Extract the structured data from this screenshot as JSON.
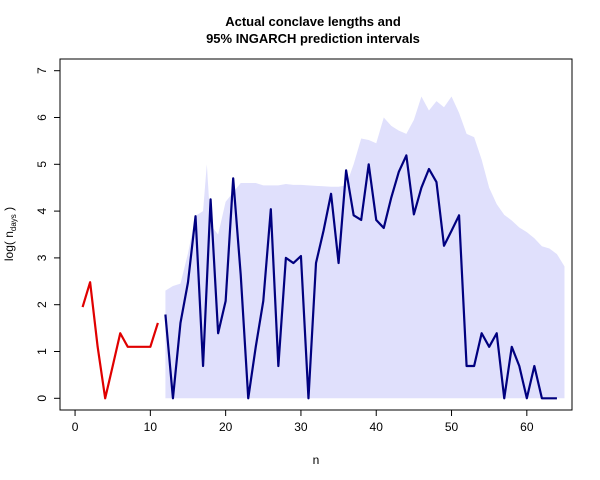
{
  "chart_data": {
    "type": "line",
    "title_line1": "Actual conclave lengths and",
    "title_line2": "95% INGARCH prediction intervals",
    "xlabel": "n",
    "ylabel_main": "log( n",
    "ylabel_sub": "days",
    "ylabel_close": " )",
    "xlim": [
      -2,
      66
    ],
    "ylim": [
      -0.25,
      7.25
    ],
    "x_ticks": [
      0,
      10,
      20,
      30,
      40,
      50,
      60
    ],
    "y_ticks": [
      0,
      1,
      2,
      3,
      4,
      5,
      6,
      7
    ],
    "colors": {
      "observed": "#e00000",
      "actual": "#00007f",
      "interval": "#e0e0fc"
    },
    "observed": {
      "x": [
        1,
        2,
        3,
        4,
        5,
        6,
        7,
        8,
        9,
        10,
        11
      ],
      "y": [
        1.95,
        2.48,
        1.1,
        0.0,
        0.69,
        1.39,
        1.1,
        1.1,
        1.1,
        1.1,
        1.61
      ]
    },
    "actual": {
      "x": [
        12,
        13,
        14,
        15,
        16,
        17,
        18,
        19,
        20,
        21,
        22,
        23,
        24,
        25,
        26,
        27,
        28,
        29,
        30,
        31,
        32,
        33,
        34,
        35,
        36,
        37,
        38,
        39,
        40,
        41,
        42,
        43,
        44,
        45,
        46,
        47,
        48,
        49,
        50,
        51,
        52,
        53,
        54,
        55,
        56,
        57,
        58,
        59,
        60,
        61,
        62,
        63,
        64
      ],
      "y": [
        1.79,
        0.0,
        1.61,
        2.48,
        3.89,
        0.69,
        4.25,
        1.39,
        2.08,
        4.7,
        2.64,
        0.0,
        1.1,
        2.08,
        4.04,
        0.69,
        3.0,
        2.89,
        3.04,
        0.0,
        2.89,
        3.58,
        4.37,
        2.89,
        4.87,
        3.91,
        3.81,
        5.0,
        3.81,
        3.64,
        4.29,
        4.84,
        5.19,
        3.93,
        4.5,
        4.9,
        4.62,
        3.26,
        3.58,
        3.91,
        0.69,
        0.69,
        1.39,
        1.1,
        1.39,
        0.0,
        1.1,
        0.69,
        0.0,
        0.69,
        0.0,
        0.0,
        0.0
      ]
    },
    "interval": {
      "x": [
        12,
        13,
        14,
        15,
        16,
        17,
        17.5,
        18,
        19,
        20,
        21,
        22,
        23,
        24,
        25,
        26,
        27,
        28,
        29,
        30,
        31,
        32,
        33,
        34,
        35,
        36,
        37,
        38,
        39,
        40,
        41,
        42,
        43,
        44,
        45,
        46,
        47,
        48,
        49,
        50,
        51,
        52,
        53,
        54,
        55,
        56,
        57,
        58,
        59,
        60,
        61,
        62,
        63,
        64,
        65
      ],
      "lower": [
        0,
        0,
        0,
        0,
        0,
        0,
        0,
        0,
        0,
        0,
        0,
        0,
        0,
        0,
        0,
        0,
        0,
        0,
        0,
        0,
        0,
        0,
        0,
        0,
        0,
        0,
        0,
        0,
        0,
        0,
        0,
        0,
        0,
        0,
        0,
        0,
        0,
        0,
        0,
        0,
        0,
        0,
        0,
        0,
        0,
        0,
        0,
        0,
        0,
        0,
        0,
        0,
        0,
        0,
        0
      ],
      "upper": [
        2.3,
        2.4,
        2.45,
        3.1,
        3.9,
        4.0,
        5.0,
        3.7,
        3.5,
        4.2,
        4.4,
        4.6,
        4.6,
        4.6,
        4.55,
        4.55,
        4.55,
        4.58,
        4.56,
        4.56,
        4.55,
        4.54,
        4.53,
        4.52,
        4.52,
        4.55,
        5.0,
        5.55,
        5.52,
        5.45,
        6.0,
        5.82,
        5.72,
        5.65,
        5.95,
        6.45,
        6.15,
        6.35,
        6.22,
        6.45,
        6.1,
        5.65,
        5.58,
        5.1,
        4.5,
        4.15,
        3.92,
        3.8,
        3.65,
        3.55,
        3.42,
        3.25,
        3.2,
        3.08,
        2.82
      ]
    }
  }
}
